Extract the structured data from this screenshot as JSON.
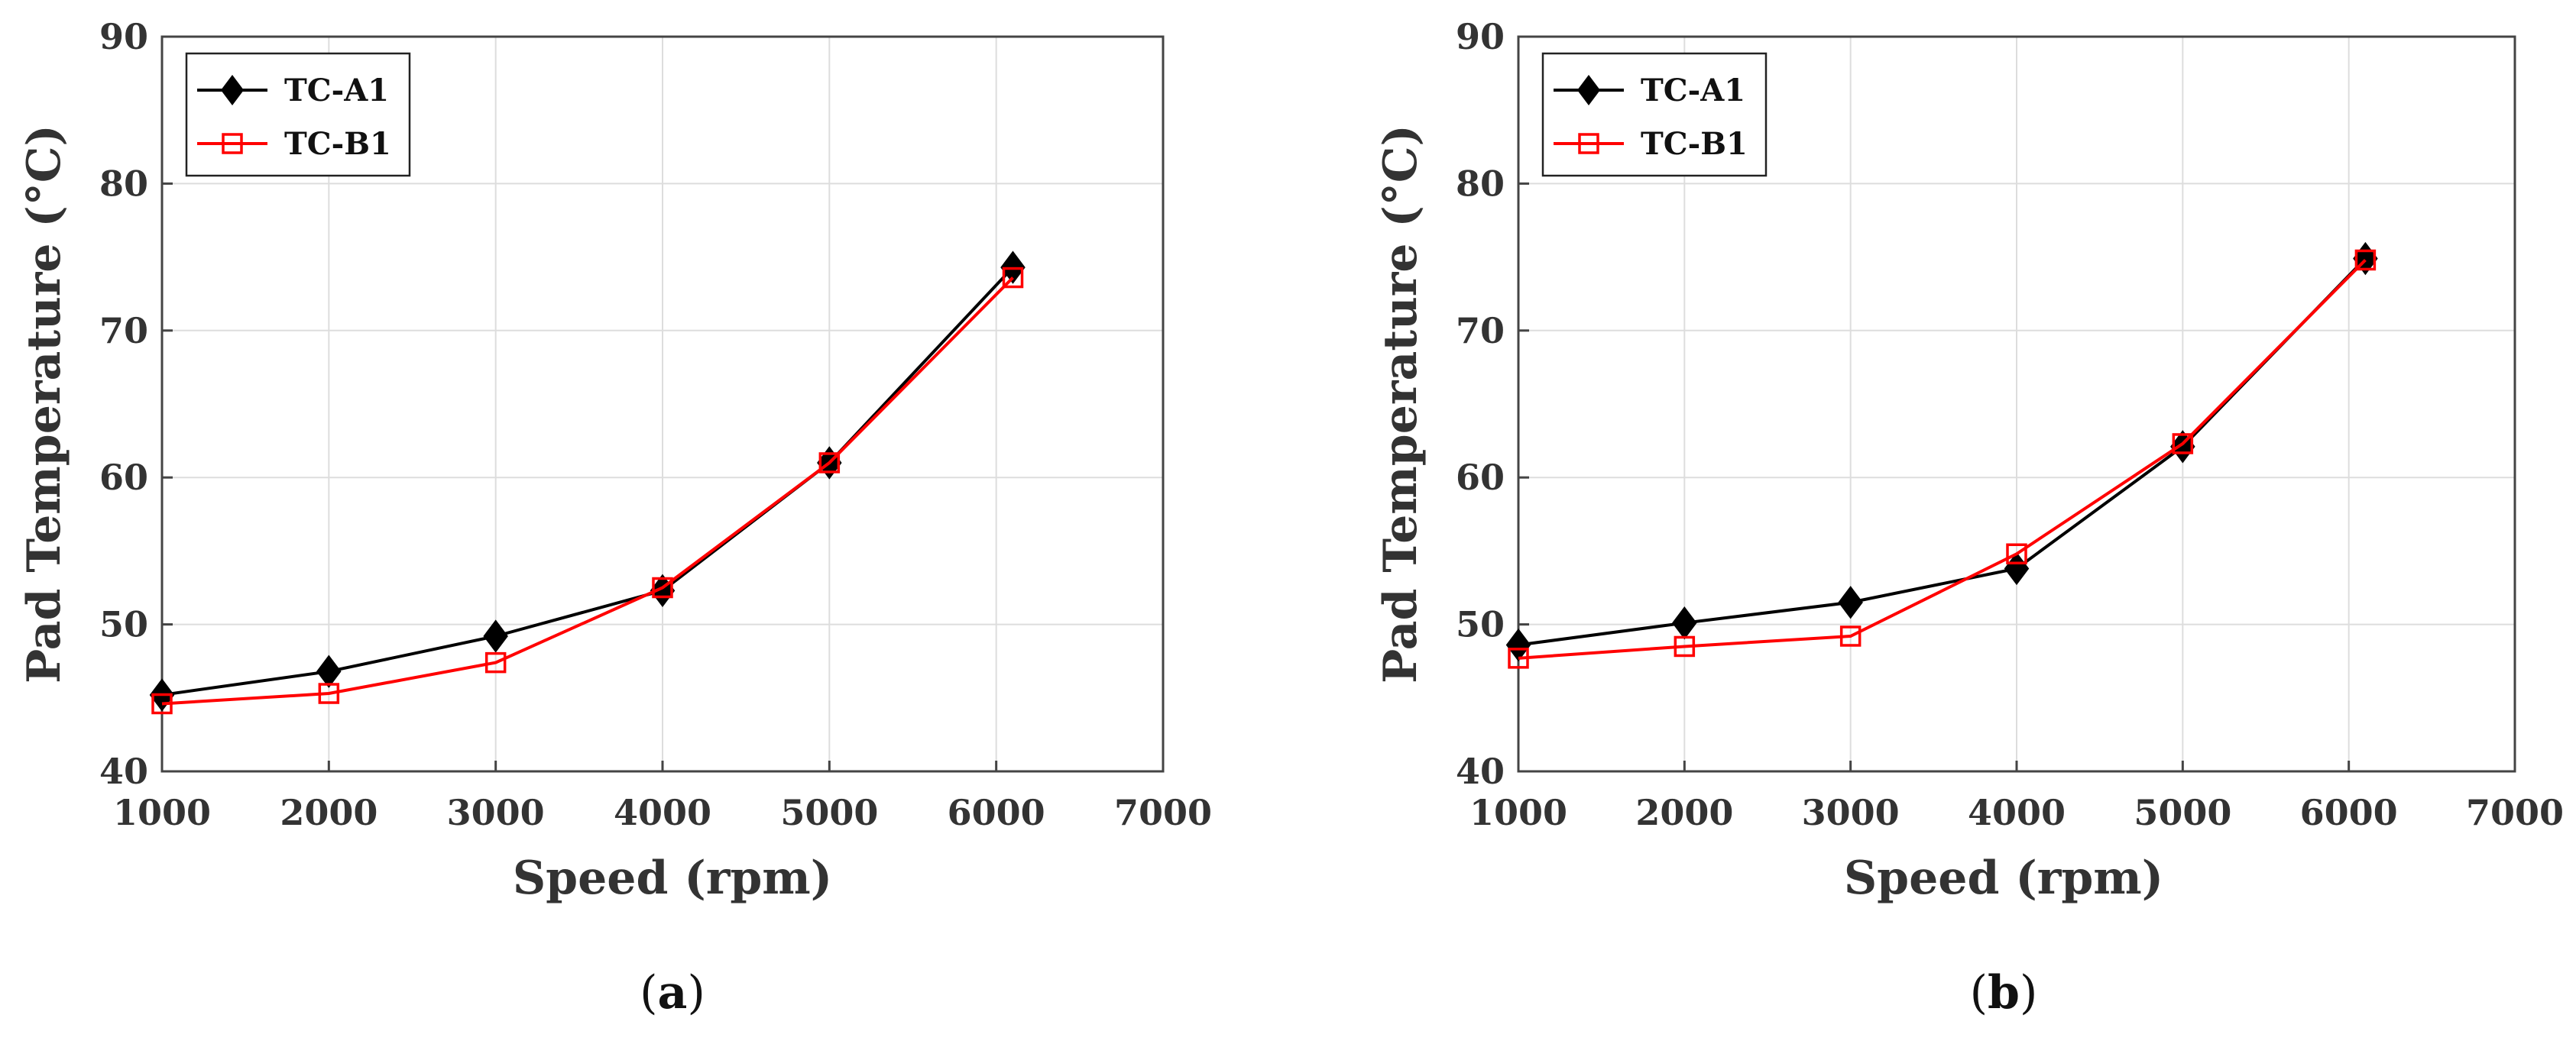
{
  "chart_data": [
    {
      "type": "line",
      "panel_label": "(a)",
      "panel_letter": "a",
      "xlabel": "Speed (rpm)",
      "ylabel": "Pad Temperature (°C)",
      "xlim": [
        1000,
        7000
      ],
      "ylim": [
        40,
        90
      ],
      "xticks": [
        1000,
        2000,
        3000,
        4000,
        5000,
        6000,
        7000
      ],
      "yticks": [
        40,
        50,
        60,
        70,
        80,
        90
      ],
      "grid": true,
      "legend_position": "top-left",
      "series": [
        {
          "name": "TC-A1",
          "color": "#000000",
          "marker": "diamond-filled",
          "x": [
            1000,
            2000,
            3000,
            4000,
            5000,
            6100
          ],
          "y": [
            45.2,
            46.8,
            49.2,
            52.3,
            61.0,
            74.3
          ]
        },
        {
          "name": "TC-B1",
          "color": "#ff0000",
          "marker": "square-open",
          "x": [
            1000,
            2000,
            3000,
            4000,
            5000,
            6100
          ],
          "y": [
            44.6,
            45.3,
            47.4,
            52.5,
            61.0,
            73.6
          ]
        }
      ]
    },
    {
      "type": "line",
      "panel_label": "(b)",
      "panel_letter": "b",
      "xlabel": "Speed (rpm)",
      "ylabel": "Pad Temperature (°C)",
      "xlim": [
        1000,
        7000
      ],
      "ylim": [
        40,
        90
      ],
      "xticks": [
        1000,
        2000,
        3000,
        4000,
        5000,
        6000,
        7000
      ],
      "yticks": [
        40,
        50,
        60,
        70,
        80,
        90
      ],
      "grid": true,
      "legend_position": "top-left",
      "series": [
        {
          "name": "TC-A1",
          "color": "#000000",
          "marker": "diamond-filled",
          "x": [
            1000,
            2000,
            3000,
            4000,
            5000,
            6100
          ],
          "y": [
            48.6,
            50.1,
            51.5,
            53.8,
            62.1,
            74.9
          ]
        },
        {
          "name": "TC-B1",
          "color": "#ff0000",
          "marker": "square-open",
          "x": [
            1000,
            2000,
            3000,
            4000,
            5000,
            6100
          ],
          "y": [
            47.7,
            48.5,
            49.2,
            54.8,
            62.3,
            74.8
          ]
        }
      ]
    }
  ]
}
